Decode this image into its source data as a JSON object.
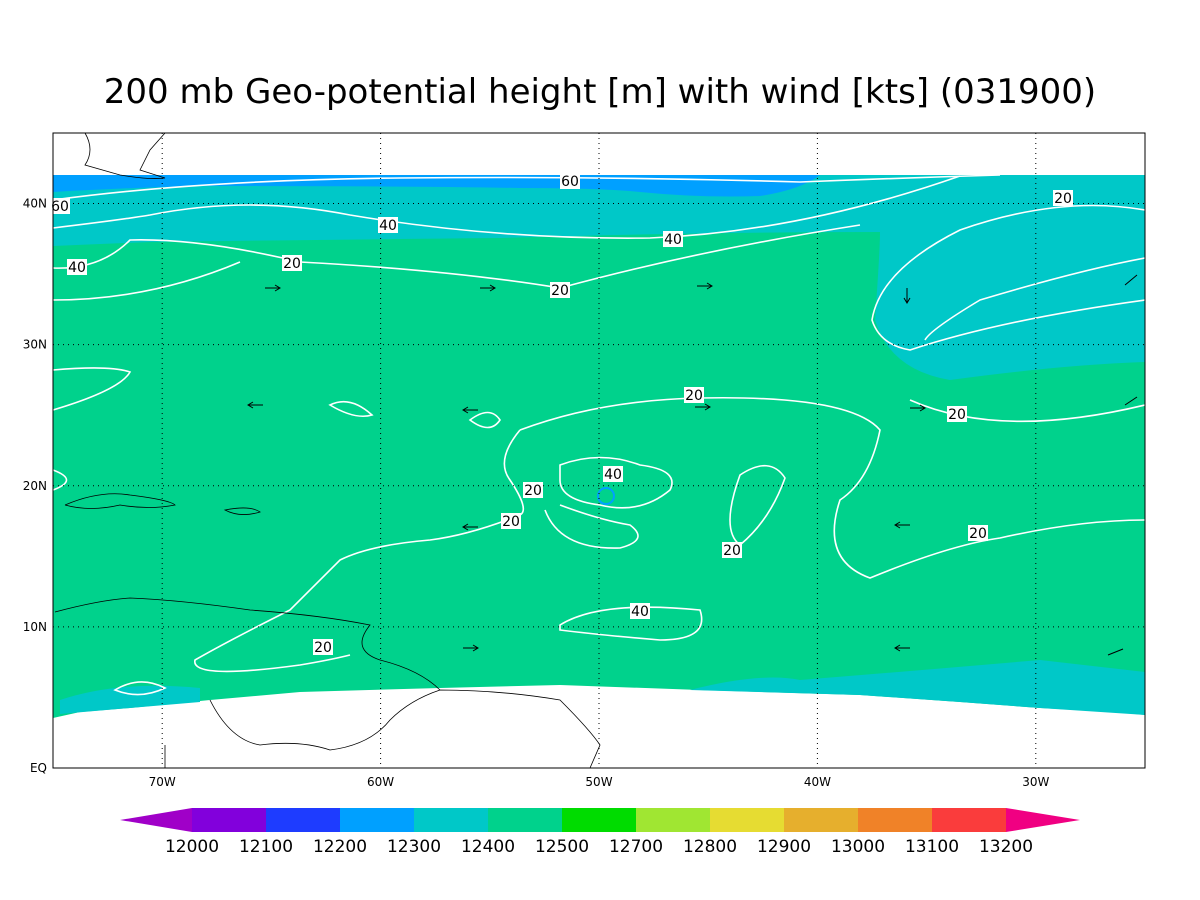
{
  "map": {
    "title": "200 mb Geo-potential height [m] with wind [kts] (031900)",
    "xlim": [
      -75,
      -25
    ],
    "ylim": [
      0,
      45
    ],
    "xticks": [
      {
        "value": -70,
        "label": "70W"
      },
      {
        "value": -60,
        "label": "60W"
      },
      {
        "value": -50,
        "label": "50W"
      },
      {
        "value": -40,
        "label": "40W"
      },
      {
        "value": -30,
        "label": "30W"
      }
    ],
    "yticks": [
      {
        "value": 0,
        "label": "EQ"
      },
      {
        "value": 10,
        "label": "10N"
      },
      {
        "value": 20,
        "label": "20N"
      },
      {
        "value": 30,
        "label": "30N"
      },
      {
        "value": 40,
        "label": "40N"
      }
    ],
    "grid": true,
    "contour_labels": [
      60,
      60,
      40,
      40,
      40,
      20,
      20,
      20,
      20,
      20,
      40,
      20,
      20,
      20,
      20,
      40,
      20
    ],
    "colorbar": {
      "levels": [
        12000,
        12100,
        12200,
        12300,
        12400,
        12500,
        12700,
        12800,
        12900,
        13000,
        13100,
        13200
      ],
      "colors": [
        "#a000c8",
        "#8200dc",
        "#1e3cff",
        "#00a0ff",
        "#00c8c8",
        "#00d28c",
        "#00dc00",
        "#a0e632",
        "#e6dc32",
        "#e6af2d",
        "#f08228",
        "#fa3c3c",
        "#f00082"
      ]
    }
  }
}
